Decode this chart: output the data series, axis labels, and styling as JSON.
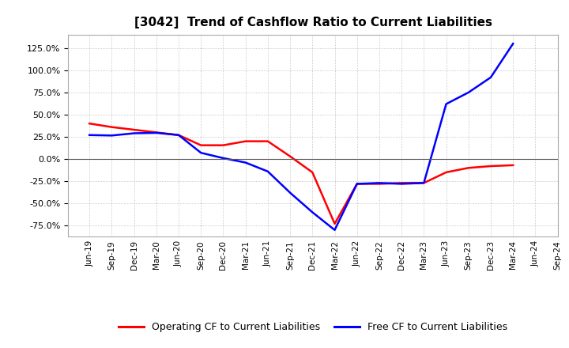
{
  "title": "[3042]  Trend of Cashflow Ratio to Current Liabilities",
  "x_labels": [
    "Jun-19",
    "Sep-19",
    "Dec-19",
    "Mar-20",
    "Jun-20",
    "Sep-20",
    "Dec-20",
    "Mar-21",
    "Jun-21",
    "Sep-21",
    "Dec-21",
    "Mar-22",
    "Jun-22",
    "Sep-22",
    "Dec-22",
    "Mar-23",
    "Jun-23",
    "Sep-23",
    "Dec-23",
    "Mar-24",
    "Jun-24",
    "Sep-24"
  ],
  "operating_cf": [
    0.4,
    0.36,
    0.33,
    0.3,
    0.27,
    0.155,
    0.155,
    0.2,
    0.2,
    0.03,
    -0.15,
    -0.73,
    -0.28,
    -0.28,
    -0.27,
    -0.27,
    -0.15,
    -0.1,
    -0.08,
    -0.07,
    null,
    null
  ],
  "free_cf": [
    0.27,
    0.265,
    0.29,
    0.295,
    0.27,
    0.07,
    0.01,
    -0.04,
    -0.14,
    -0.38,
    -0.6,
    -0.8,
    -0.28,
    -0.27,
    -0.28,
    -0.27,
    0.62,
    0.75,
    0.92,
    1.3,
    null,
    null
  ],
  "ylim": [
    -0.875,
    1.4
  ],
  "yticks": [
    -0.75,
    -0.5,
    -0.25,
    0.0,
    0.25,
    0.5,
    0.75,
    1.0,
    1.25
  ],
  "operating_color": "#ff0000",
  "free_color": "#0000ff",
  "background_color": "#ffffff",
  "plot_bg_color": "#ffffff",
  "grid_color": "#999999",
  "zero_line_color": "#555555",
  "legend_operating": "Operating CF to Current Liabilities",
  "legend_free": "Free CF to Current Liabilities",
  "title_fontsize": 11,
  "tick_fontsize": 8,
  "xtick_fontsize": 7.5,
  "legend_fontsize": 9,
  "line_width": 1.8
}
